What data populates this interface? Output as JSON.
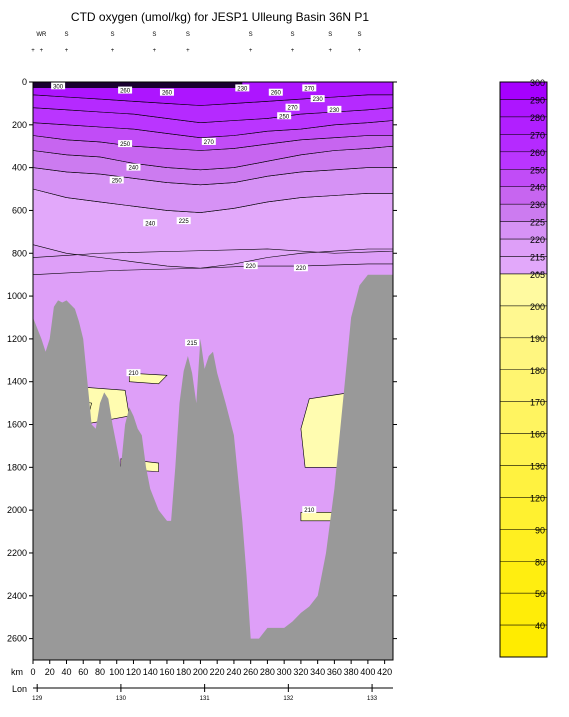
{
  "chart_data": {
    "type": "heatmap",
    "title": "CTD oxygen (umol/kg) for JESP1 Ulleung Basin 36N P1",
    "xlabel": "km",
    "x2label": "Lon",
    "ylabel": "",
    "xlim": [
      0,
      430
    ],
    "ylim": [
      2700,
      0
    ],
    "x_ticks": [
      0,
      20,
      40,
      60,
      80,
      100,
      120,
      140,
      160,
      180,
      200,
      220,
      240,
      260,
      280,
      300,
      320,
      340,
      360,
      380,
      400,
      420
    ],
    "y_ticks": [
      0,
      200,
      400,
      600,
      800,
      1000,
      1200,
      1400,
      1600,
      1800,
      2000,
      2200,
      2400,
      2600
    ],
    "lon_ticks": [
      129,
      130,
      131,
      132,
      133
    ],
    "lon_km": [
      5,
      105,
      205,
      305,
      405
    ],
    "station_header_row1": [
      "WR",
      "S",
      "S",
      "S",
      "S",
      "S",
      "S",
      "S",
      "S"
    ],
    "station_header_km": [
      10,
      40,
      95,
      145,
      185,
      260,
      310,
      355,
      390
    ],
    "colorbar": {
      "levels": [
        300,
        290,
        280,
        270,
        260,
        250,
        240,
        230,
        225,
        220,
        215,
        210,
        205,
        200,
        190,
        180,
        170,
        160,
        130,
        120,
        90,
        80,
        50,
        40
      ],
      "colors": {
        "300": "#a600ff",
        "290": "#ad15ff",
        "280": "#b11fff",
        "270": "#b52aff",
        "260": "#ba35ff",
        "250": "#c14cf7",
        "240": "#c765f0",
        "230": "#cc7bf0",
        "225": "#d692f5",
        "220": "#de9ff8",
        "215": "#e2a8fa",
        "210": "#fffcb0",
        "205": "#fffaa0",
        "200": "#fff890",
        "190": "#fff680",
        "180": "#fff570",
        "170": "#fff460",
        "160": "#fff350",
        "130": "#fff240",
        "120": "#fff130",
        "90": "#ffef20",
        "80": "#ffee10",
        "50": "#ffed08",
        "40": "#ffec00"
      }
    },
    "contour_labels": [
      "300",
      "260",
      "230",
      "270",
      "250",
      "240",
      "225",
      "220",
      "215",
      "210"
    ],
    "bathymetry": [
      [
        0,
        1100
      ],
      [
        5,
        1150
      ],
      [
        10,
        1200
      ],
      [
        15,
        1260
      ],
      [
        20,
        1200
      ],
      [
        25,
        1050
      ],
      [
        30,
        1020
      ],
      [
        35,
        1030
      ],
      [
        40,
        1020
      ],
      [
        50,
        1060
      ],
      [
        55,
        1120
      ],
      [
        60,
        1200
      ],
      [
        65,
        1400
      ],
      [
        70,
        1600
      ],
      [
        75,
        1620
      ],
      [
        80,
        1500
      ],
      [
        85,
        1450
      ],
      [
        90,
        1480
      ],
      [
        95,
        1600
      ],
      [
        100,
        1700
      ],
      [
        105,
        1800
      ],
      [
        110,
        1600
      ],
      [
        115,
        1520
      ],
      [
        120,
        1560
      ],
      [
        125,
        1620
      ],
      [
        130,
        1650
      ],
      [
        135,
        1800
      ],
      [
        140,
        1900
      ],
      [
        150,
        2000
      ],
      [
        160,
        2050
      ],
      [
        165,
        2050
      ],
      [
        170,
        1800
      ],
      [
        175,
        1500
      ],
      [
        180,
        1350
      ],
      [
        185,
        1280
      ],
      [
        190,
        1360
      ],
      [
        195,
        1500
      ],
      [
        200,
        1200
      ],
      [
        205,
        1340
      ],
      [
        210,
        1280
      ],
      [
        215,
        1260
      ],
      [
        220,
        1360
      ],
      [
        230,
        1500
      ],
      [
        240,
        1650
      ],
      [
        250,
        2050
      ],
      [
        255,
        2300
      ],
      [
        260,
        2600
      ],
      [
        270,
        2600
      ],
      [
        280,
        2550
      ],
      [
        290,
        2550
      ],
      [
        300,
        2550
      ],
      [
        310,
        2520
      ],
      [
        320,
        2480
      ],
      [
        330,
        2450
      ],
      [
        340,
        2400
      ],
      [
        350,
        2200
      ],
      [
        360,
        1900
      ],
      [
        365,
        1700
      ],
      [
        370,
        1500
      ],
      [
        375,
        1300
      ],
      [
        380,
        1100
      ],
      [
        390,
        950
      ],
      [
        400,
        900
      ],
      [
        405,
        900
      ],
      [
        430,
        900
      ]
    ]
  }
}
